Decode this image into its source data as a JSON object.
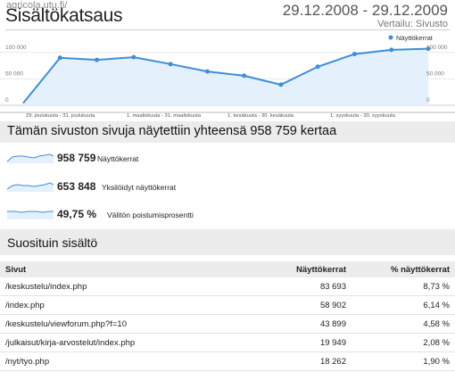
{
  "header": {
    "site": "agricola.utu.fi/",
    "title": "Sisältökatsaus",
    "date_range": "29.12.2008 - 29.12.2009",
    "comparison": "Vertailu: Sivusto"
  },
  "chart_data": {
    "type": "line",
    "legend": "Näyttökerrat",
    "legend_placement": "top-right",
    "y_ticks": [
      "100 000",
      "50 000",
      "0"
    ],
    "ylim": [
      0,
      125000
    ],
    "x_tick_labels": [
      "29. joulukuuta - 31. joulukuuta",
      "1. maaliskuuta - 31. maaliskuuta",
      "1. kesäkuuta - 30. kesäkuuta",
      "1. syyskuuta - 30. syyskuuta"
    ],
    "series": [
      {
        "name": "Näyttökerrat",
        "values": [
          4000,
          90000,
          86000,
          91000,
          78000,
          64000,
          56000,
          39000,
          73000,
          97000,
          105000,
          107000
        ]
      }
    ],
    "grid": true
  },
  "summary": {
    "title": "Tämän sivuston sivuja näytettiin yhteensä 958 759 kertaa",
    "metrics": [
      {
        "value": "958 759",
        "label": "Näyttökerrat"
      },
      {
        "value": "653 848",
        "label": "Yksilöidyt näyttökerrat"
      },
      {
        "value": "49,75 %",
        "label": "Välitön poistumisprosentti"
      }
    ]
  },
  "top_content": {
    "title": "Suosituin sisältö",
    "columns": [
      "Sivut",
      "Näyttökerrat",
      "% näyttökerrat"
    ],
    "rows": [
      [
        "/keskustelu/index.php",
        "83 693",
        "8,73 %"
      ],
      [
        "/index.php",
        "58 902",
        "6,14 %"
      ],
      [
        "/keskustelu/viewforum.php?f=10",
        "43 899",
        "4,58 %"
      ],
      [
        "/julkaisut/kirja-arvostelut/index.php",
        "19 949",
        "2,08 %"
      ],
      [
        "/nyt/tyo.php",
        "18 262",
        "1,90 %"
      ]
    ]
  },
  "colors": {
    "line": "#3e8ddb",
    "fill": "#e4f0fb",
    "header_bg": "#ececec"
  }
}
